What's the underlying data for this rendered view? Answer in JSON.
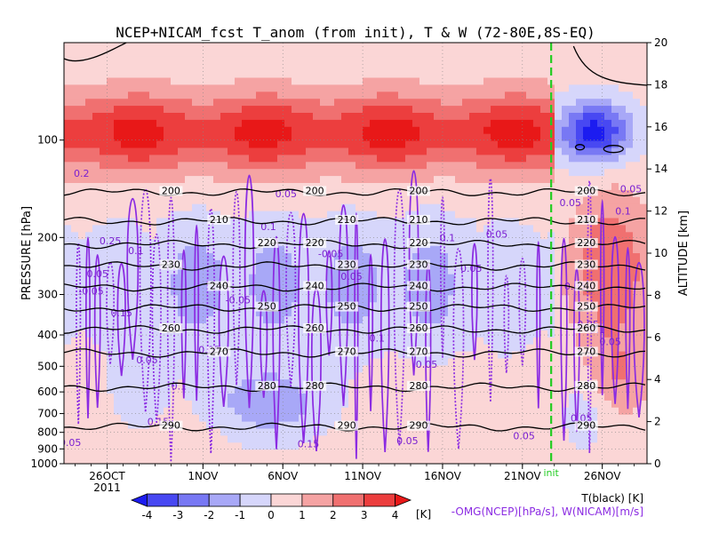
{
  "chart_data": {
    "type": "heatmap",
    "title": "NCEP+NICAM_fcst T_anom (from init), T & W  (72-80E,8S-EQ)",
    "ylabel_left": "PRESSURE [hPa]",
    "ylabel_right": "ALTITUDE [km]",
    "x_ticks": [
      "26OCT",
      "1NOV",
      "6NOV",
      "11NOV",
      "16NOV",
      "21NOV",
      "26NOV"
    ],
    "x_year": "2011",
    "x_tick_days": [
      0,
      6,
      11,
      16,
      21,
      26,
      31
    ],
    "x_range_days": [
      -2.7,
      33.8
    ],
    "init_label": "init",
    "init_day": 27.8,
    "pressure_ticks": [
      "100",
      "200",
      "300",
      "400",
      "500",
      "600",
      "700",
      "800",
      "900",
      "1000"
    ],
    "pressure_values": [
      100,
      200,
      300,
      400,
      500,
      600,
      700,
      800,
      900,
      1000
    ],
    "pressure_range": [
      1000,
      50
    ],
    "altitude_ticks": [
      "0",
      "2",
      "4",
      "6",
      "8",
      "10",
      "12",
      "14",
      "16",
      "18",
      "20"
    ],
    "altitude_values": [
      0,
      2,
      4,
      6,
      8,
      10,
      12,
      14,
      16,
      18,
      20
    ],
    "colorbar": {
      "levels": [
        "-4",
        "-3",
        "-2",
        "-1",
        "0",
        "1",
        "2",
        "3",
        "4"
      ],
      "unit": "[K]",
      "colors": [
        "#1c1cf0",
        "#4848f2",
        "#7878f4",
        "#a8a8f7",
        "#d6d6fb",
        "#fbd6d6",
        "#f5a3a3",
        "#f07070",
        "#ec3e3e",
        "#e81818"
      ]
    },
    "temperature_contours": [
      {
        "label": "200",
        "pressure": 145
      },
      {
        "label": "210",
        "pressure": 178
      },
      {
        "label": "220",
        "pressure": 210
      },
      {
        "label": "230",
        "pressure": 245
      },
      {
        "label": "240",
        "pressure": 285
      },
      {
        "label": "250",
        "pressure": 330
      },
      {
        "label": "260",
        "pressure": 385
      },
      {
        "label": "270",
        "pressure": 455
      },
      {
        "label": "280",
        "pressure": 580
      },
      {
        "label": "290",
        "pressure": 770
      }
    ],
    "omega_labels": [
      "0.05",
      "0.1",
      "0.15",
      "0.2",
      "0.25",
      "-0.05"
    ],
    "legend_line1": "T(black) [K]",
    "legend_line2": "-OMG(NCEP)[hPa/s], W(NICAM)[m/s]",
    "colors": {
      "temperature_contour": "#000000",
      "omega_contour": "#8b2be2",
      "init_line": "#22cc22"
    }
  }
}
